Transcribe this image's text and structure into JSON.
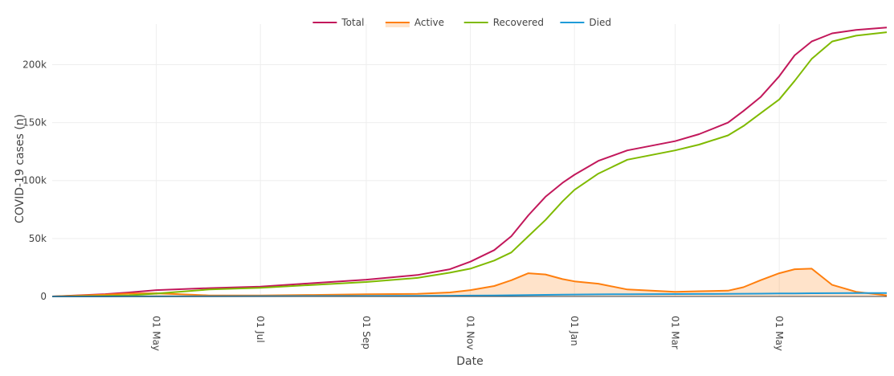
{
  "chart_data": {
    "type": "line",
    "xlabel": "Date",
    "ylabel": "COVID-19 cases (n)",
    "xlim": [
      "2020-03-01",
      "2021-07-03"
    ],
    "ylim": [
      0,
      235000
    ],
    "x_ticks": [
      {
        "date": "2020-05-01",
        "label": "01 May"
      },
      {
        "date": "2020-07-01",
        "label": "01 Jul"
      },
      {
        "date": "2020-09-01",
        "label": "01 Sep"
      },
      {
        "date": "2020-11-01",
        "label": "01 Nov"
      },
      {
        "date": "2021-01-01",
        "label": "01 Jan"
      },
      {
        "date": "2021-03-01",
        "label": "01 Mar"
      },
      {
        "date": "2021-05-01",
        "label": "01 May"
      }
    ],
    "y_ticks": [
      {
        "value": 0,
        "label": "0"
      },
      {
        "value": 50000,
        "label": "50k"
      },
      {
        "value": 100000,
        "label": "100k"
      },
      {
        "value": 150000,
        "label": "150k"
      },
      {
        "value": 200000,
        "label": "200k"
      }
    ],
    "grid": true,
    "legend_position": "top-center",
    "x": [
      "2020-03-01",
      "2020-04-01",
      "2020-04-15",
      "2020-05-01",
      "2020-06-01",
      "2020-07-01",
      "2020-08-01",
      "2020-09-01",
      "2020-10-01",
      "2020-10-20",
      "2020-11-01",
      "2020-11-15",
      "2020-11-25",
      "2020-12-05",
      "2020-12-15",
      "2020-12-25",
      "2021-01-01",
      "2021-01-15",
      "2021-02-01",
      "2021-03-01",
      "2021-03-15",
      "2021-04-01",
      "2021-04-10",
      "2021-04-20",
      "2021-05-01",
      "2021-05-10",
      "2021-05-20",
      "2021-06-01",
      "2021-06-15",
      "2021-07-03"
    ],
    "series": [
      {
        "name": "Total",
        "color": "#c2185b",
        "fill": false,
        "values": [
          0,
          2000,
          3500,
          5500,
          7200,
          8500,
          11500,
          14500,
          18500,
          23500,
          30000,
          40000,
          52000,
          70000,
          86000,
          98000,
          105000,
          117000,
          126000,
          134000,
          140000,
          150000,
          160000,
          172000,
          190000,
          208000,
          220000,
          227000,
          230000,
          232000
        ]
      },
      {
        "name": "Active",
        "color": "#ff7f0e",
        "fill": true,
        "fill_color": "rgba(255,127,14,0.22)",
        "values": [
          0,
          1500,
          2500,
          2800,
          900,
          900,
          1300,
          1900,
          2200,
          3500,
          5500,
          9000,
          14000,
          20000,
          19000,
          15000,
          13000,
          11000,
          6000,
          4000,
          4500,
          5000,
          8000,
          14000,
          20000,
          23500,
          24000,
          10000,
          4000,
          1000
        ]
      },
      {
        "name": "Recovered",
        "color": "#7fba00",
        "fill": false,
        "values": [
          0,
          500,
          1000,
          2500,
          6000,
          7500,
          10000,
          12500,
          16000,
          20500,
          24000,
          31000,
          38000,
          52000,
          66000,
          82000,
          92000,
          106000,
          118000,
          126000,
          131000,
          139000,
          147000,
          158000,
          170000,
          186000,
          205000,
          220000,
          225000,
          228000
        ]
      },
      {
        "name": "Died",
        "color": "#1f9bd8",
        "fill": false,
        "values": [
          0,
          20,
          40,
          80,
          150,
          250,
          350,
          450,
          550,
          650,
          750,
          900,
          1050,
          1200,
          1400,
          1550,
          1650,
          1800,
          1950,
          2050,
          2150,
          2250,
          2350,
          2450,
          2550,
          2650,
          2750,
          2850,
          2950,
          3000
        ]
      }
    ]
  }
}
